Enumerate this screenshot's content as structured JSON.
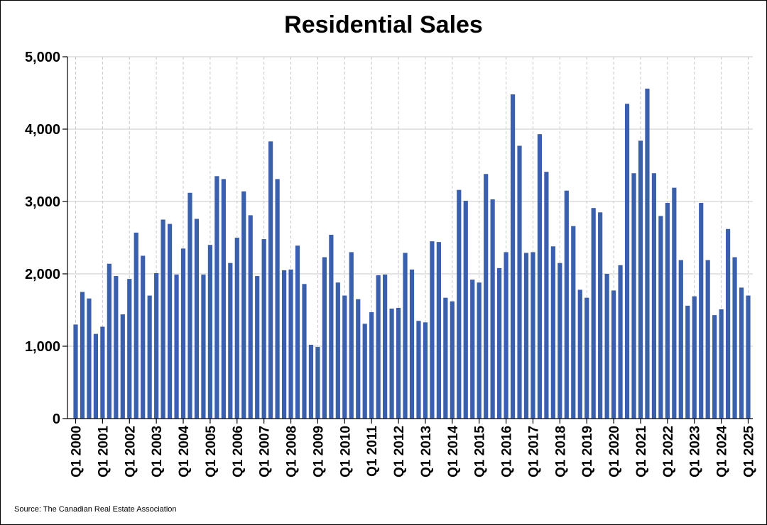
{
  "chart_data": {
    "type": "bar",
    "title": "Residential Sales",
    "source": "Source: The Canadian Real Estate Association",
    "ylim": [
      0,
      5000
    ],
    "yticks": [
      0,
      1000,
      2000,
      3000,
      4000,
      5000
    ],
    "ytick_labels": [
      "0",
      "1,000",
      "2,000",
      "3,000",
      "4,000",
      "5,000"
    ],
    "bar_color": "#3a5fac",
    "grid": true,
    "xtick_labels": [
      "Q1 2000",
      "Q1 2001",
      "Q1 2002",
      "Q1 2003",
      "Q1 2004",
      "Q1 2005",
      "Q1 2006",
      "Q1 2007",
      "Q1 2008",
      "Q1 2009",
      "Q1 2010",
      "Q1 2011",
      "Q1 2012",
      "Q1 2013",
      "Q1 2014",
      "Q1 2015",
      "Q1 2016",
      "Q1 2017",
      "Q1 2018",
      "Q1 2019",
      "Q1 2020",
      "Q1 2021",
      "Q1 2022",
      "Q1 2023",
      "Q1 2024",
      "Q1 2025"
    ],
    "categories": [
      "Q1 2000",
      "Q2 2000",
      "Q3 2000",
      "Q4 2000",
      "Q1 2001",
      "Q2 2001",
      "Q3 2001",
      "Q4 2001",
      "Q1 2002",
      "Q2 2002",
      "Q3 2002",
      "Q4 2002",
      "Q1 2003",
      "Q2 2003",
      "Q3 2003",
      "Q4 2003",
      "Q1 2004",
      "Q2 2004",
      "Q3 2004",
      "Q4 2004",
      "Q1 2005",
      "Q2 2005",
      "Q3 2005",
      "Q4 2005",
      "Q1 2006",
      "Q2 2006",
      "Q3 2006",
      "Q4 2006",
      "Q1 2007",
      "Q2 2007",
      "Q3 2007",
      "Q4 2007",
      "Q1 2008",
      "Q2 2008",
      "Q3 2008",
      "Q4 2008",
      "Q1 2009",
      "Q2 2009",
      "Q3 2009",
      "Q4 2009",
      "Q1 2010",
      "Q2 2010",
      "Q3 2010",
      "Q4 2010",
      "Q1 2011",
      "Q2 2011",
      "Q3 2011",
      "Q4 2011",
      "Q1 2012",
      "Q2 2012",
      "Q3 2012",
      "Q4 2012",
      "Q1 2013",
      "Q2 2013",
      "Q3 2013",
      "Q4 2013",
      "Q1 2014",
      "Q2 2014",
      "Q3 2014",
      "Q4 2014",
      "Q1 2015",
      "Q2 2015",
      "Q3 2015",
      "Q4 2015",
      "Q1 2016",
      "Q2 2016",
      "Q3 2016",
      "Q4 2016",
      "Q1 2017",
      "Q2 2017",
      "Q3 2017",
      "Q4 2017",
      "Q1 2018",
      "Q2 2018",
      "Q3 2018",
      "Q4 2018",
      "Q1 2019",
      "Q2 2019",
      "Q3 2019",
      "Q4 2019",
      "Q1 2020",
      "Q2 2020",
      "Q3 2020",
      "Q4 2020",
      "Q1 2021",
      "Q2 2021",
      "Q3 2021",
      "Q4 2021",
      "Q1 2022",
      "Q2 2022",
      "Q3 2022",
      "Q4 2022",
      "Q1 2023",
      "Q2 2023",
      "Q3 2023",
      "Q4 2023",
      "Q1 2024",
      "Q2 2024",
      "Q3 2024",
      "Q4 2024",
      "Q1 2025"
    ],
    "values": [
      1300,
      1750,
      1660,
      1170,
      1270,
      2140,
      1970,
      1440,
      1930,
      2570,
      2250,
      1700,
      2010,
      2750,
      2690,
      1990,
      2350,
      3120,
      2760,
      1990,
      2400,
      3350,
      3310,
      2150,
      2500,
      3140,
      2810,
      1970,
      2480,
      3830,
      3310,
      2050,
      2060,
      2390,
      1860,
      1020,
      990,
      2230,
      2540,
      1880,
      1700,
      2300,
      1650,
      1310,
      1470,
      1980,
      1990,
      1520,
      1530,
      2290,
      2060,
      1350,
      1330,
      2450,
      2440,
      1670,
      1620,
      3160,
      3010,
      1920,
      1880,
      3380,
      3030,
      2080,
      2300,
      4480,
      3770,
      2290,
      2300,
      3930,
      3410,
      2380,
      2150,
      3150,
      2660,
      1780,
      1670,
      2910,
      2850,
      2000,
      1770,
      2120,
      4350,
      3390,
      3840,
      4560,
      3390,
      2800,
      2980,
      3190,
      2190,
      1560,
      1690,
      2980,
      2190,
      1430,
      1510,
      2620,
      2230,
      1810,
      1700
    ]
  }
}
